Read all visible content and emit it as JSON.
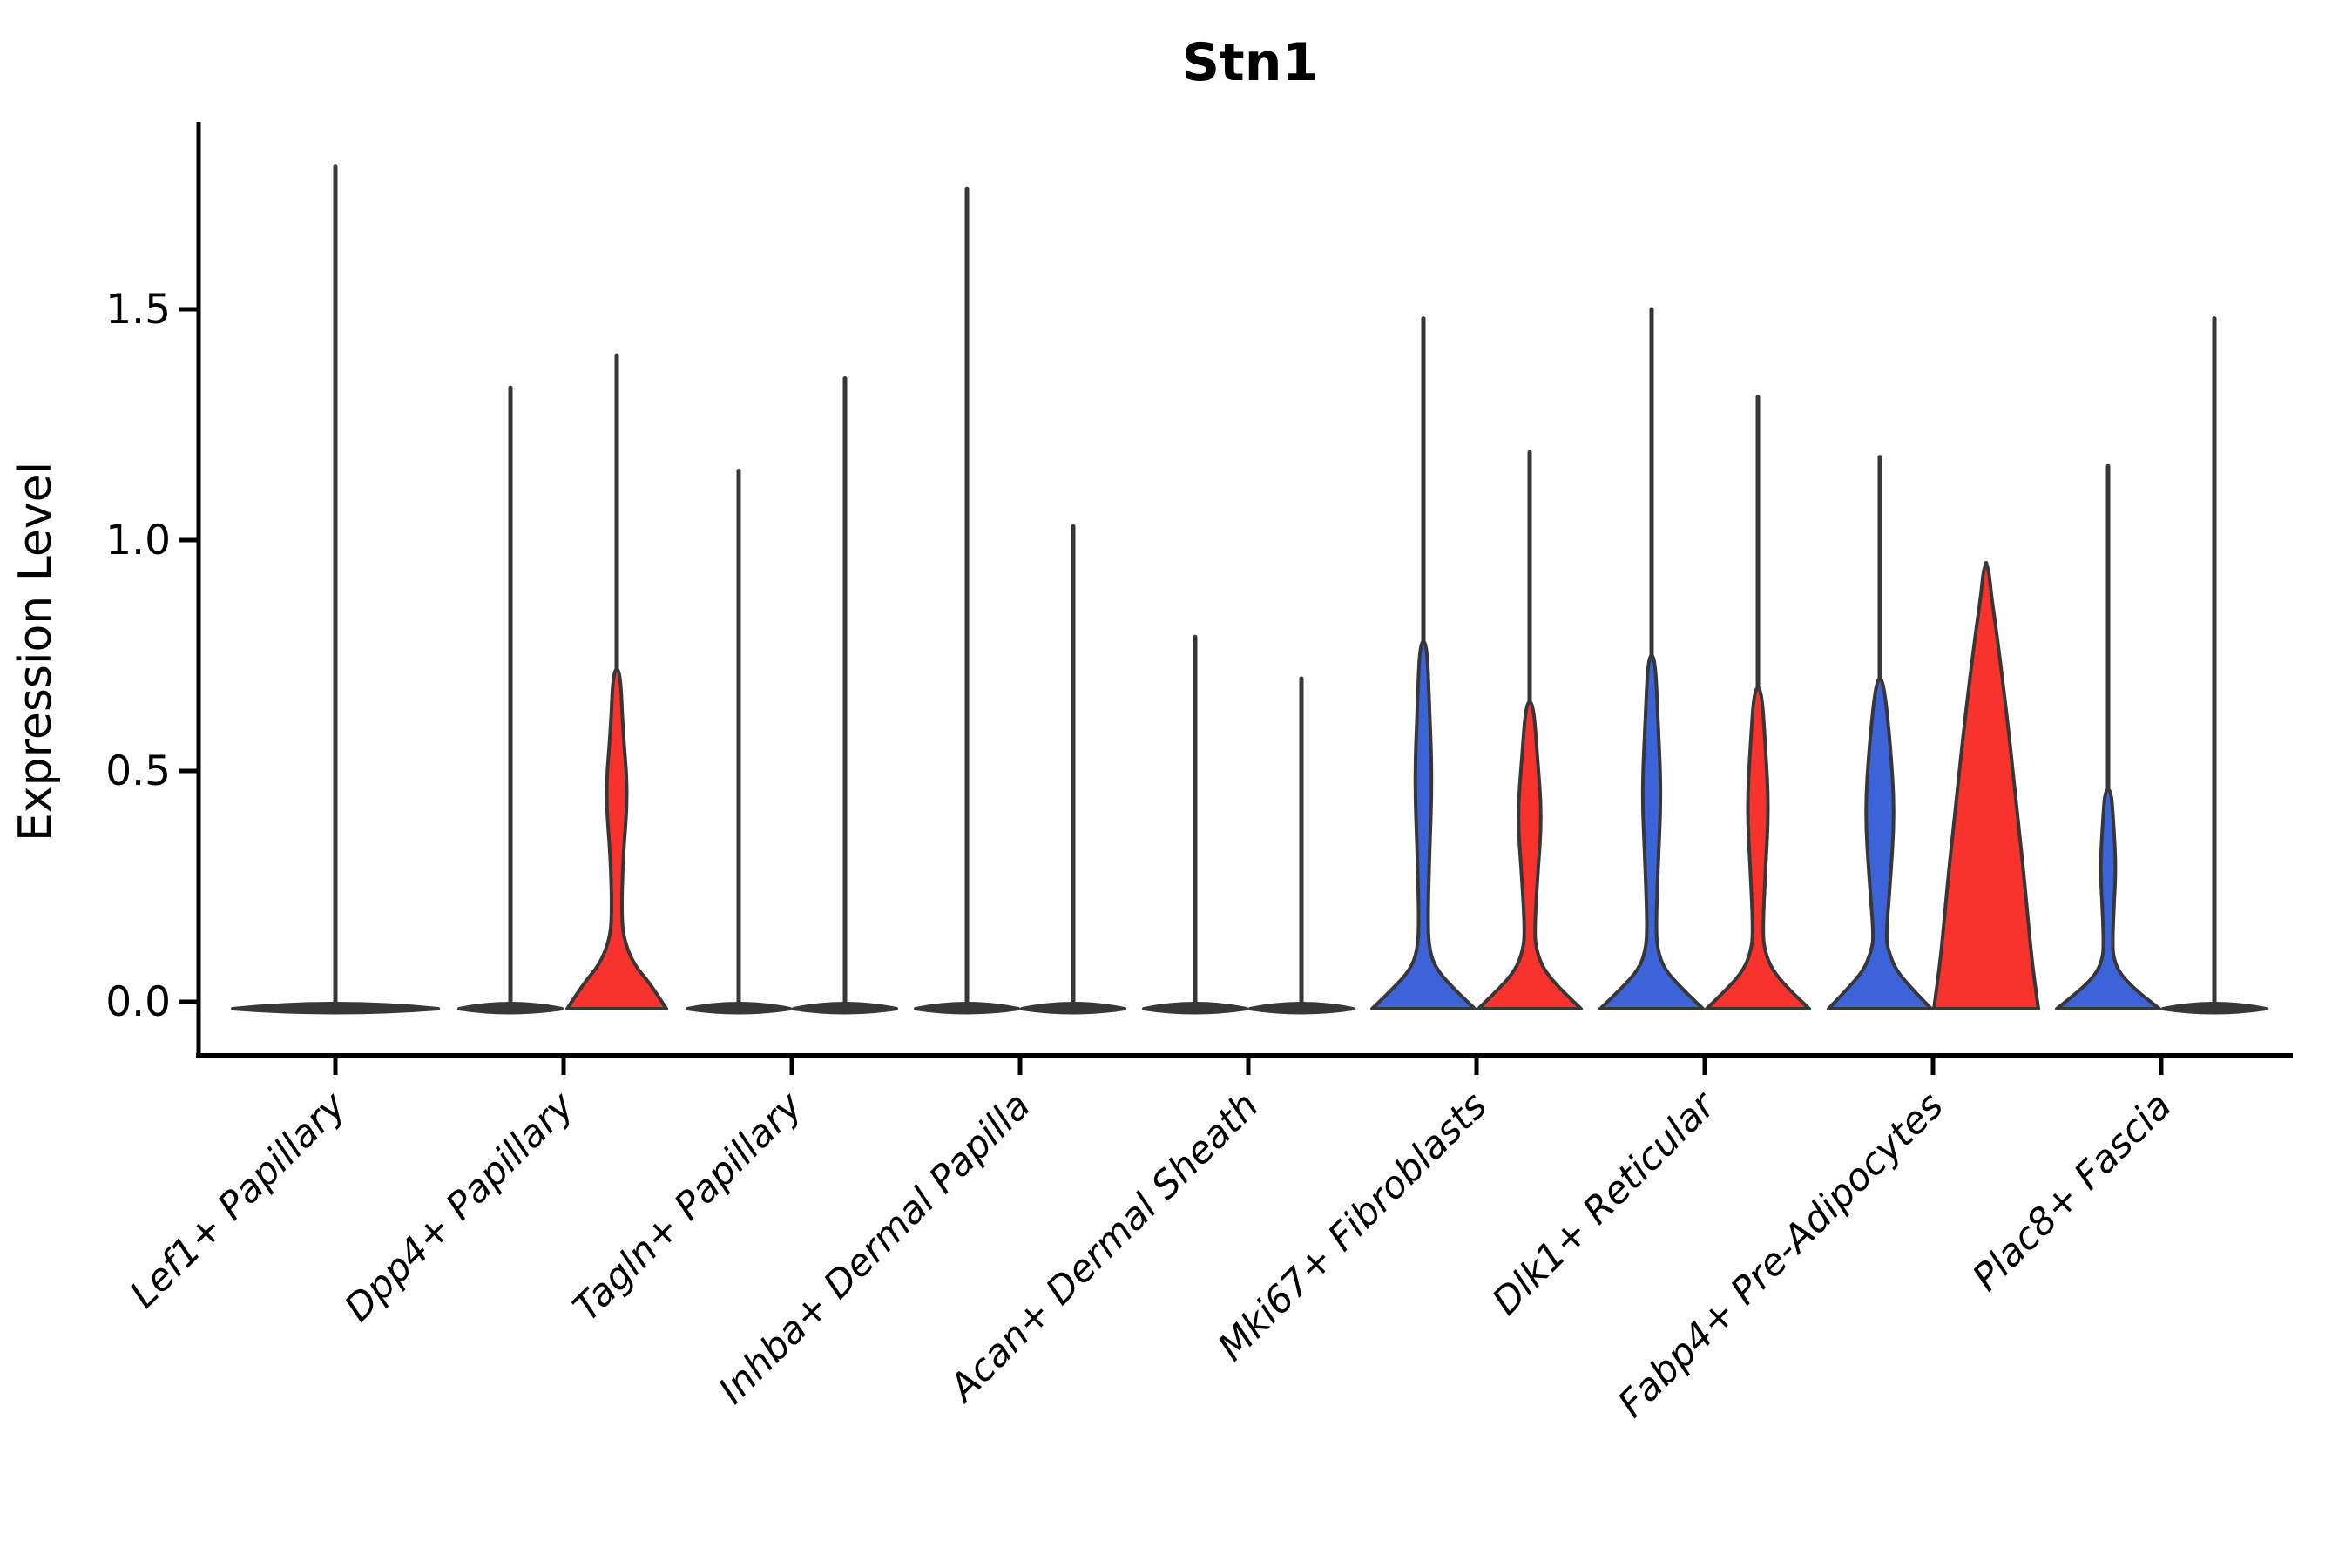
{
  "title": "Stn1",
  "colors": {
    "blue": "#3C63D8",
    "red": "#F8332D",
    "outline": "#373737",
    "axis": "#000000",
    "text": "#000000",
    "background": "#ffffff"
  },
  "y_axis": {
    "label": "Expression Level",
    "tick_labels": [
      "0.0",
      "0.5",
      "1.0",
      "1.5"
    ],
    "tick_values": [
      0,
      0.5,
      1.0,
      1.5
    ]
  },
  "chart_data": {
    "type": "violin",
    "title": "Stn1",
    "subtitle": "",
    "xlabel": "",
    "ylabel": "Expression Level",
    "ylim": [
      0,
      1.9
    ],
    "grid": false,
    "legend": "none",
    "x_tick_rotation": 45,
    "split_colors": {
      "left": "#3C63D8",
      "right": "#F8332D"
    },
    "y_ticks": [
      {
        "value": 0,
        "label": "0.0"
      },
      {
        "value": 0.5,
        "label": "0.5"
      },
      {
        "value": 1.0,
        "label": "1.0"
      },
      {
        "value": 1.5,
        "label": "1.5"
      }
    ],
    "categories": [
      "Lef1+ Papillary",
      "Dpp4+ Papillary",
      "Tagln+ Papillary",
      "Inhba+ Dermal Papilla",
      "Acan+ Dermal Sheath",
      "Mki67+ Fibroblasts",
      "Dlk1+ Reticular",
      "Fabp4+ Pre-Adipocytes",
      "Plac8+ Fascia"
    ],
    "groups": [
      {
        "category": "Lef1+ Papillary",
        "violins": [
          {
            "split": "single",
            "color": "outline",
            "kind": "flat",
            "slot": 0,
            "max": 1.81
          }
        ]
      },
      {
        "category": "Dpp4+ Papillary",
        "violins": [
          {
            "split": "left",
            "color": "blue",
            "kind": "flat",
            "slot": -1,
            "max": 1.33
          },
          {
            "split": "right",
            "color": "red",
            "kind": "body",
            "slot": 1,
            "max": 1.4,
            "profile": [
              [
                0,
                57
              ],
              [
                0.04,
                38
              ],
              [
                0.08,
                20
              ],
              [
                0.13,
                9
              ],
              [
                0.18,
                5.5
              ],
              [
                0.31,
                7
              ],
              [
                0.45,
                13
              ],
              [
                0.59,
                7
              ],
              [
                0.72,
                4
              ]
            ]
          }
        ]
      },
      {
        "category": "Tagln+ Papillary",
        "violins": [
          {
            "split": "left",
            "color": "blue",
            "kind": "flat",
            "slot": -1,
            "max": 1.15
          },
          {
            "split": "right",
            "color": "red",
            "kind": "flat",
            "slot": 1,
            "max": 1.35
          }
        ]
      },
      {
        "category": "Inhba+ Dermal Papilla",
        "violins": [
          {
            "split": "left",
            "color": "blue",
            "kind": "flat",
            "slot": -1,
            "max": 1.76
          },
          {
            "split": "right",
            "color": "red",
            "kind": "flat",
            "slot": 1,
            "max": 1.03
          }
        ]
      },
      {
        "category": "Acan+ Dermal Sheath",
        "violins": [
          {
            "split": "left",
            "color": "blue",
            "kind": "flat",
            "slot": -1,
            "max": 0.79
          },
          {
            "split": "right",
            "color": "red",
            "kind": "flat",
            "slot": 1,
            "max": 0.7
          }
        ]
      },
      {
        "category": "Mki67+ Fibroblasts",
        "violins": [
          {
            "split": "left",
            "color": "blue",
            "kind": "body",
            "slot": -1,
            "max": 1.48,
            "profile": [
              [
                0,
                59
              ],
              [
                0.03,
                34
              ],
              [
                0.07,
                15
              ],
              [
                0.11,
                7
              ],
              [
                0.17,
                5
              ],
              [
                0.32,
                7
              ],
              [
                0.48,
                10
              ],
              [
                0.64,
                7
              ],
              [
                0.78,
                4
              ]
            ]
          },
          {
            "split": "right",
            "color": "red",
            "kind": "body",
            "slot": 1,
            "max": 1.19,
            "profile": [
              [
                0,
                59
              ],
              [
                0.03,
                34
              ],
              [
                0.07,
                16
              ],
              [
                0.11,
                8
              ],
              [
                0.15,
                5.5
              ],
              [
                0.27,
                9
              ],
              [
                0.4,
                14
              ],
              [
                0.53,
                9
              ],
              [
                0.65,
                4
              ]
            ]
          }
        ]
      },
      {
        "category": "Dlk1+ Reticular",
        "violins": [
          {
            "split": "left",
            "color": "blue",
            "kind": "body",
            "slot": -1,
            "max": 1.5,
            "profile": [
              [
                0,
                59
              ],
              [
                0.03,
                34
              ],
              [
                0.07,
                15
              ],
              [
                0.11,
                7
              ],
              [
                0.16,
                5
              ],
              [
                0.3,
                7.5
              ],
              [
                0.45,
                11
              ],
              [
                0.6,
                7.5
              ],
              [
                0.75,
                4
              ]
            ]
          },
          {
            "split": "right",
            "color": "red",
            "kind": "body",
            "slot": 1,
            "max": 1.31,
            "profile": [
              [
                0,
                59
              ],
              [
                0.03,
                34
              ],
              [
                0.07,
                16
              ],
              [
                0.11,
                8
              ],
              [
                0.15,
                5.5
              ],
              [
                0.28,
                8.5
              ],
              [
                0.42,
                12.5
              ],
              [
                0.56,
                8.5
              ],
              [
                0.68,
                4
              ]
            ]
          }
        ]
      },
      {
        "category": "Fabp4+ Pre-Adipocytes",
        "violins": [
          {
            "split": "left",
            "color": "blue",
            "kind": "body",
            "slot": -1,
            "max": 1.18,
            "profile": [
              [
                0,
                59
              ],
              [
                0.03,
                36
              ],
              [
                0.07,
                18
              ],
              [
                0.11,
                10
              ],
              [
                0.14,
                7
              ],
              [
                0.26,
                12
              ],
              [
                0.41,
                17
              ],
              [
                0.56,
                12
              ],
              [
                0.7,
                4
              ]
            ]
          },
          {
            "split": "right",
            "color": "red",
            "kind": "wide",
            "slot": 1,
            "max": 0.95,
            "profile": [
              [
                0,
                60
              ],
              [
                0.08,
                53
              ],
              [
                0.18,
                48
              ],
              [
                0.3,
                42
              ],
              [
                0.42,
                35
              ],
              [
                0.55,
                28
              ],
              [
                0.68,
                20
              ],
              [
                0.8,
                12
              ],
              [
                0.88,
                6
              ],
              [
                0.945,
                2.5
              ]
            ]
          }
        ]
      },
      {
        "category": "Plac8+ Fascia",
        "violins": [
          {
            "split": "left",
            "color": "blue",
            "kind": "body",
            "slot": -1,
            "max": 1.16,
            "profile": [
              [
                0,
                59
              ],
              [
                0.025,
                32
              ],
              [
                0.06,
                14
              ],
              [
                0.09,
                7
              ],
              [
                0.12,
                5
              ],
              [
                0.2,
                6.5
              ],
              [
                0.29,
                9
              ],
              [
                0.38,
                6.5
              ],
              [
                0.46,
                3.5
              ]
            ]
          },
          {
            "split": "right",
            "color": "red",
            "kind": "flat",
            "slot": 1,
            "max": 1.48
          }
        ]
      }
    ]
  }
}
